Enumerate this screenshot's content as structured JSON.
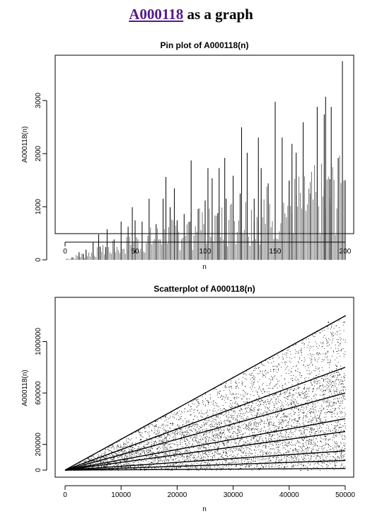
{
  "header": {
    "link_text": "A000118",
    "suffix_text": "as a graph"
  },
  "chart_data": [
    {
      "type": "bar",
      "subtype": "pin",
      "title": "Pin plot of A000118(n)",
      "xlabel": "n",
      "ylabel": "A000118(n)",
      "xlim": [
        0,
        200
      ],
      "ylim": [
        0,
        3800
      ],
      "xticks": [
        0,
        50,
        100,
        150,
        200
      ],
      "yticks": [
        0,
        1000,
        2000,
        3000
      ],
      "grid": false,
      "color": "#000000",
      "x": [
        1,
        5,
        10,
        13,
        15,
        20,
        24,
        25,
        29,
        30,
        35,
        40,
        45,
        48,
        50,
        55,
        60,
        65,
        70,
        72,
        75,
        78,
        80,
        85,
        89,
        90,
        95,
        100,
        102,
        105,
        109,
        110,
        114,
        115,
        120,
        125,
        126,
        130,
        135,
        138,
        140,
        145,
        150,
        155,
        160,
        162,
        165,
        170,
        175,
        180,
        185,
        186,
        189,
        190,
        195,
        198,
        200
      ],
      "values": [
        8,
        48,
        144,
        112,
        192,
        336,
        480,
        248,
        240,
        576,
        384,
        720,
        624,
        992,
        744,
        720,
        1152,
        672,
        1152,
        1560,
        992,
        1344,
        744,
        864,
        720,
        1872,
        960,
        1116,
        1728,
        1536,
        880,
        1728,
        1920,
        1152,
        1584,
        1248,
        2496,
        2016,
        1152,
        2304,
        1728,
        1440,
        2976,
        2304,
        1488,
        2184,
        2016,
        2592,
        1248,
        2880,
        2736,
        3072,
        1520,
        2880,
        1920,
        3744,
        1500
      ]
    },
    {
      "type": "scatter",
      "title": "Scatterplot of A000118(n)",
      "xlabel": "n",
      "ylabel": "A000118(n)",
      "xlim": [
        0,
        50000
      ],
      "ylim": [
        0,
        1300000
      ],
      "xticks": [
        0,
        10000,
        20000,
        30000,
        40000,
        50000
      ],
      "yticks": [
        0,
        200000,
        600000,
        1000000
      ],
      "grid": false,
      "color": "#000000",
      "series": [
        {
          "slope": 24,
          "comment_free": true
        },
        {
          "slope": 16
        },
        {
          "slope": 12
        },
        {
          "slope": 8
        },
        {
          "slope": 6
        },
        {
          "slope": 3
        },
        {
          "slope": 1.5
        },
        {
          "slope": 0.25
        }
      ],
      "x": [
        1000,
        5000,
        10000,
        15000,
        20000,
        25000,
        30000,
        35000,
        40000,
        45000,
        47000,
        48000,
        49000,
        50000
      ],
      "values": [
        24000,
        120000,
        240000,
        360000,
        480000,
        600000,
        720000,
        840000,
        960000,
        1080000,
        1150000,
        1152000,
        1176000,
        1200000
      ]
    }
  ]
}
